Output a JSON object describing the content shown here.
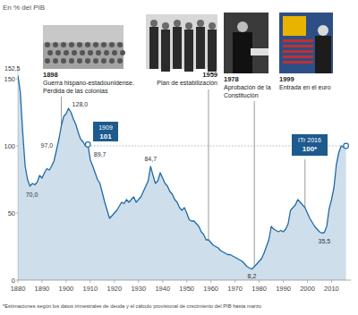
{
  "chart_data": {
    "type": "area",
    "subtitle": "En % del PIB",
    "color": "#1f6aa5",
    "x": [
      1880,
      1881,
      1882,
      1883,
      1884,
      1885,
      1886,
      1887,
      1888,
      1889,
      1890,
      1891,
      1892,
      1893,
      1894,
      1895,
      1896,
      1897,
      1898,
      1899,
      1900,
      1901,
      1902,
      1903,
      1904,
      1905,
      1906,
      1907,
      1908,
      1909,
      1910,
      1911,
      1912,
      1913,
      1914,
      1915,
      1916,
      1917,
      1918,
      1919,
      1920,
      1921,
      1922,
      1923,
      1924,
      1925,
      1926,
      1927,
      1928,
      1929,
      1930,
      1931,
      1932,
      1933,
      1934,
      1935,
      1936,
      1937,
      1938,
      1939,
      1940,
      1941,
      1942,
      1943,
      1944,
      1945,
      1946,
      1947,
      1948,
      1949,
      1950,
      1951,
      1952,
      1953,
      1954,
      1955,
      1956,
      1957,
      1958,
      1959,
      1960,
      1961,
      1962,
      1963,
      1964,
      1965,
      1966,
      1967,
      1968,
      1969,
      1970,
      1971,
      1972,
      1973,
      1974,
      1975,
      1976,
      1977,
      1978,
      1979,
      1980,
      1981,
      1982,
      1983,
      1984,
      1985,
      1986,
      1987,
      1988,
      1989,
      1990,
      1991,
      1992,
      1993,
      1994,
      1995,
      1996,
      1997,
      1998,
      1999,
      2000,
      2001,
      2002,
      2003,
      2004,
      2005,
      2006,
      2007,
      2008,
      2009,
      2010,
      2011,
      2012,
      2013,
      2014,
      2015,
      2016
    ],
    "values": [
      152.5,
      140,
      110,
      85,
      75,
      70,
      72,
      71,
      73,
      78,
      76,
      80,
      83,
      82,
      85,
      89,
      97,
      105,
      115,
      122,
      124,
      128,
      125,
      120,
      116,
      110,
      105,
      103,
      100,
      101,
      89.7,
      85,
      80,
      75,
      72,
      65,
      58,
      52,
      46,
      48,
      50,
      52,
      55,
      58,
      57,
      60,
      58,
      60,
      62,
      58,
      60,
      62,
      66,
      70,
      74,
      84.7,
      78,
      72,
      74,
      80,
      76,
      72,
      70,
      66,
      64,
      60,
      58,
      54,
      52,
      54,
      50,
      45,
      44,
      44,
      42,
      40,
      36,
      34,
      30,
      30,
      28,
      26,
      25,
      24,
      22,
      21,
      20,
      19,
      19,
      18,
      17,
      16,
      15,
      14,
      12,
      10,
      9,
      8.2,
      10,
      12,
      14,
      16,
      20,
      25,
      30,
      40,
      38,
      37,
      36,
      37,
      36,
      38,
      42,
      52,
      54,
      56,
      60,
      58,
      56,
      54,
      50,
      46,
      43,
      40,
      38,
      36,
      35,
      35.5,
      40,
      53,
      60,
      69,
      86,
      95,
      100,
      99,
      100
    ],
    "xlim": [
      1880,
      2018
    ],
    "xticks": [
      1880,
      1890,
      1900,
      1910,
      1920,
      1930,
      1940,
      1950,
      1960,
      1970,
      1980,
      1990,
      2000,
      2010
    ],
    "ylim": [
      0,
      160
    ],
    "yticks": [
      0,
      50,
      100,
      150
    ],
    "grid": false,
    "reference_line": 100,
    "annotations": [
      {
        "x": 1880,
        "y": 152.5,
        "label": "152,5"
      },
      {
        "x": 1885,
        "y": 70,
        "label": "70,0"
      },
      {
        "x": 1896,
        "y": 97,
        "label": "97,0"
      },
      {
        "x": 1901,
        "y": 128,
        "label": "128,0"
      },
      {
        "x": 1910,
        "y": 89.7,
        "label": "89,7"
      },
      {
        "x": 1935,
        "y": 84.7,
        "label": "84,7"
      },
      {
        "x": 1977,
        "y": 8.2,
        "label": "8,2"
      },
      {
        "x": 2007,
        "y": 35.5,
        "label": "35,5"
      }
    ],
    "events": [
      {
        "x": 1898,
        "label": "1898",
        "text": [
          "Guerra hispano-estadounidense.",
          "Pérdida de las colonias"
        ]
      },
      {
        "x": 1959,
        "label": "1959",
        "text": [
          "Plan de estabilización"
        ]
      },
      {
        "x": 1978,
        "label": "1978",
        "text": [
          "Aprobación de la",
          "Constitución"
        ]
      },
      {
        "x": 1999,
        "label": "1999",
        "text": [
          "Entrada en el euro"
        ]
      }
    ],
    "callouts": [
      {
        "x": 1909,
        "y": 101,
        "x_label": "1909",
        "y_label": "101"
      },
      {
        "x": 2016,
        "y": 100,
        "x_label": "ITr 2016",
        "y_label": "100*"
      }
    ],
    "footnote": "*Estimaciones según los datos trimestrales de deuda y el cálculo provisional de crecimiento del PIB hasta marzo"
  }
}
